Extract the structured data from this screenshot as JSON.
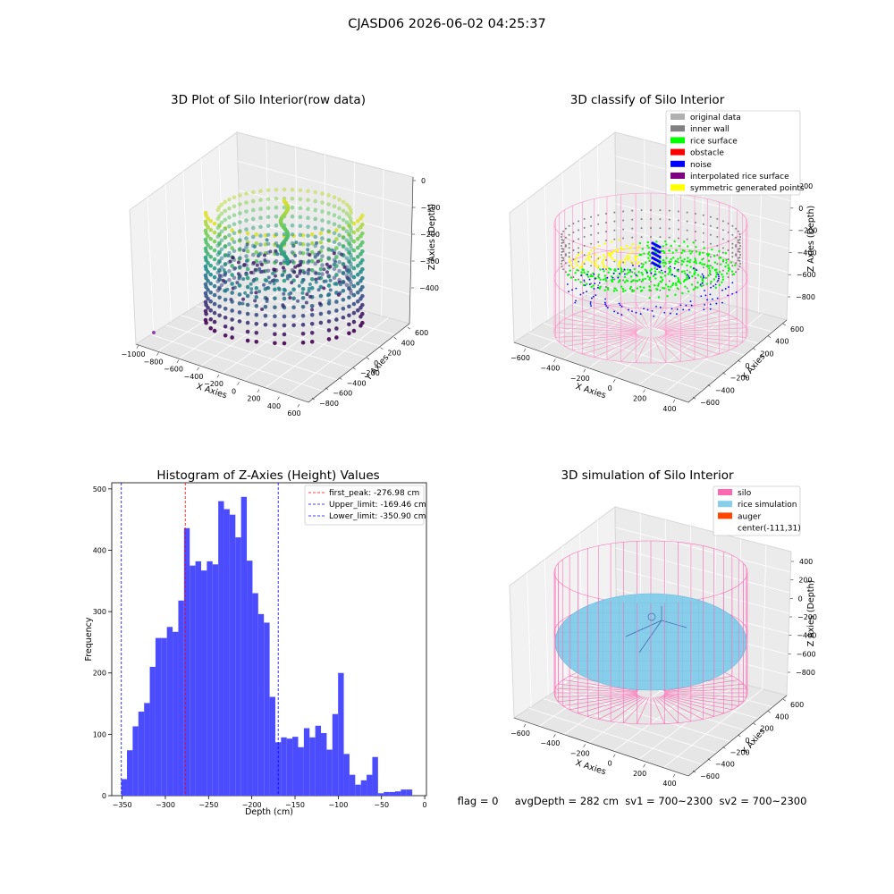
{
  "figure": {
    "suptitle": "CJASD06 2026-06-02 04:25:37",
    "status_line": "flag = 0     avgDepth = 282 cm  sv1 = 700~2300  sv2 = 700~2300"
  },
  "panel1": {
    "title": "3D Plot of Silo Interior(row data)",
    "xlabel": "X Axies",
    "ylabel": "Y Axies",
    "zlabel": "Z Axies (Depth)",
    "xticks": [
      "−1000",
      "−800",
      "−600",
      "−400",
      "−200",
      "0",
      "200",
      "400",
      "600"
    ],
    "yticks": [
      "−800",
      "−600",
      "−400",
      "−200",
      "0",
      "200",
      "400",
      "600"
    ],
    "zticks": [
      "0",
      "−100",
      "−200",
      "−300",
      "−400"
    ]
  },
  "panel2": {
    "title": "3D classify of Silo Interior",
    "xlabel": "X Axies",
    "ylabel": "Y Axies",
    "zlabel": "Z Axies (Depth)",
    "xticks": [
      "−600",
      "−400",
      "−200",
      "0",
      "200",
      "400"
    ],
    "yticks": [
      "−600",
      "−400",
      "−200",
      "0",
      "200",
      "400",
      "600"
    ],
    "zticks": [
      "200",
      "0",
      "−200",
      "−400",
      "−600",
      "−800"
    ],
    "legend": [
      {
        "label": "original data",
        "color": "#b0b0b0"
      },
      {
        "label": "inner wall",
        "color": "#808080"
      },
      {
        "label": "rice surface",
        "color": "#00ff00"
      },
      {
        "label": "obstacle",
        "color": "#ff0000"
      },
      {
        "label": "noise",
        "color": "#0000ff"
      },
      {
        "label": "interpolated rice surface",
        "color": "#800080"
      },
      {
        "label": "symmetric generated points",
        "color": "#ffff00"
      }
    ]
  },
  "panel4": {
    "title": "3D simulation of Silo Interior",
    "xlabel": "X Axies",
    "ylabel": "Y Axies",
    "zlabel": "Z Axies (Depth)",
    "xticks": [
      "−600",
      "−400",
      "−200",
      "0",
      "200",
      "400"
    ],
    "yticks": [
      "−600",
      "−400",
      "−200",
      "0",
      "200",
      "400",
      "600"
    ],
    "zticks": [
      "400",
      "200",
      "0",
      "−200",
      "−400",
      "−600",
      "−800"
    ],
    "legend": [
      {
        "label": "silo",
        "color": "#ff69b4"
      },
      {
        "label": "rice simulation",
        "color": "#87ceeb"
      },
      {
        "label": "auger",
        "color": "#ff4500"
      },
      {
        "label": "center(-111,31)",
        "color": ""
      }
    ]
  },
  "chart_data": {
    "type": "bar",
    "title": "Histogram of Z-Axies (Height) Values",
    "xlabel": "Depth (cm)",
    "ylabel": "Frequency",
    "xlim": [
      -362,
      2
    ],
    "ylim": [
      0,
      510
    ],
    "xticks": [
      -350,
      -300,
      -250,
      -200,
      -150,
      -100,
      -50,
      0
    ],
    "xtick_labels": [
      "−350",
      "−300",
      "−250",
      "−200",
      "−150",
      "−100",
      "−50",
      "0"
    ],
    "yticks": [
      0,
      100,
      200,
      300,
      400,
      500
    ],
    "bar_color": "#4c4cff",
    "bin_start": -351,
    "bin_width": 6.6,
    "values": [
      27,
      74,
      113,
      137,
      151,
      210,
      257,
      257,
      275,
      267,
      318,
      436,
      375,
      382,
      367,
      382,
      377,
      480,
      467,
      458,
      421,
      487,
      383,
      330,
      296,
      282,
      161,
      87,
      95,
      93,
      96,
      79,
      110,
      95,
      114,
      102,
      75,
      133,
      200,
      68,
      34,
      18,
      25,
      34,
      63,
      4,
      6,
      6,
      7,
      10,
      10
    ],
    "legend": [
      {
        "label": "first_peak: -276.98 cm",
        "color": "#ff0000",
        "value": -276.98
      },
      {
        "label": "Upper_limit: -169.46 cm",
        "color": "#0000ff",
        "value": -169.46
      },
      {
        "label": "Lower_limit: -350.90 cm",
        "color": "#0000ff",
        "value": -350.9
      }
    ],
    "legend_position": "upper right"
  }
}
